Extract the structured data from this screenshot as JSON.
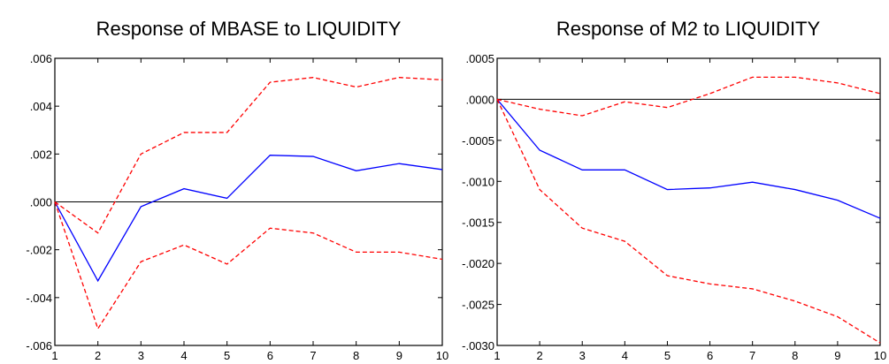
{
  "colors": {
    "response": "#0000ff",
    "band": "#ff0000",
    "zero_line": "#000000",
    "axis": "#000000"
  },
  "chart_data": [
    {
      "type": "line",
      "title": "Response of MBASE to LIQUIDITY",
      "x": [
        1,
        2,
        3,
        4,
        5,
        6,
        7,
        8,
        9,
        10
      ],
      "xlim": [
        1,
        10
      ],
      "ylim": [
        -0.006,
        0.006
      ],
      "yticks": [
        ".006",
        ".004",
        ".002",
        ".000",
        "-.002",
        "-.004",
        "-.006"
      ],
      "ytick_values": [
        0.006,
        0.004,
        0.002,
        0.0,
        -0.002,
        -0.004,
        -0.006
      ],
      "xticks": [
        "1",
        "2",
        "3",
        "4",
        "5",
        "6",
        "7",
        "8",
        "9",
        "10"
      ],
      "zero_line": true,
      "series": [
        {
          "role": "response",
          "style": "solid",
          "color": "#0000ff",
          "values": [
            0.0,
            -0.0033,
            -0.0002,
            0.00055,
            0.00015,
            0.00195,
            0.0019,
            0.0013,
            0.0016,
            0.00135
          ]
        },
        {
          "role": "upper_band",
          "style": "dashed",
          "color": "#ff0000",
          "values": [
            0.0,
            -0.0013,
            0.002,
            0.0029,
            0.0029,
            0.005,
            0.0052,
            0.0048,
            0.0052,
            0.0051
          ]
        },
        {
          "role": "lower_band",
          "style": "dashed",
          "color": "#ff0000",
          "values": [
            0.0,
            -0.0053,
            -0.0025,
            -0.0018,
            -0.0026,
            -0.0011,
            -0.0013,
            -0.0021,
            -0.0021,
            -0.0024
          ]
        }
      ]
    },
    {
      "type": "line",
      "title": "Response of M2 to LIQUIDITY",
      "x": [
        1,
        2,
        3,
        4,
        5,
        6,
        7,
        8,
        9,
        10
      ],
      "xlim": [
        1,
        10
      ],
      "ylim": [
        -0.003,
        0.0005
      ],
      "yticks": [
        ".0005",
        ".0000",
        "-.0005",
        "-.0010",
        "-.0015",
        "-.0020",
        "-.0025",
        "-.0030"
      ],
      "ytick_values": [
        0.0005,
        0.0,
        -0.0005,
        -0.001,
        -0.0015,
        -0.002,
        -0.0025,
        -0.003
      ],
      "xticks": [
        "1",
        "2",
        "3",
        "4",
        "5",
        "6",
        "7",
        "8",
        "9",
        "10"
      ],
      "zero_line": true,
      "series": [
        {
          "role": "response",
          "style": "solid",
          "color": "#0000ff",
          "values": [
            0.0,
            -0.00062,
            -0.00086,
            -0.00086,
            -0.0011,
            -0.00108,
            -0.00101,
            -0.0011,
            -0.00123,
            -0.00145
          ]
        },
        {
          "role": "upper_band",
          "style": "dashed",
          "color": "#ff0000",
          "values": [
            0.0,
            -0.00012,
            -0.0002,
            -3e-05,
            -0.0001,
            7e-05,
            0.00027,
            0.00027,
            0.0002,
            7e-05
          ]
        },
        {
          "role": "lower_band",
          "style": "dashed",
          "color": "#ff0000",
          "values": [
            0.0,
            -0.0011,
            -0.00157,
            -0.00173,
            -0.00215,
            -0.00225,
            -0.00231,
            -0.00246,
            -0.00265,
            -0.00297
          ]
        }
      ]
    }
  ]
}
